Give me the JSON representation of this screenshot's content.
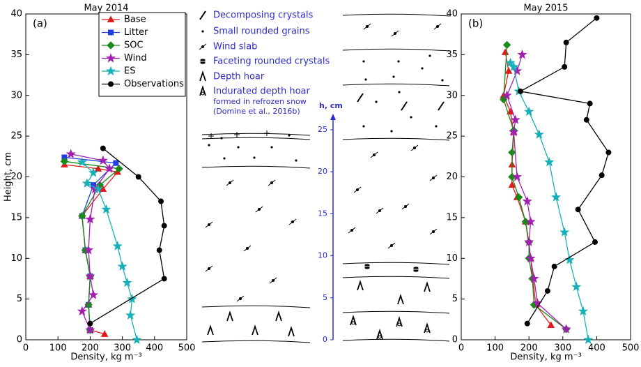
{
  "chart_data": [
    {
      "type": "line",
      "title": "May 2014",
      "panel": "(a)",
      "xlabel": "Density, kg m⁻³",
      "ylabel": "Height, cm",
      "xlim": [
        0,
        500
      ],
      "xticks": [
        0,
        100,
        200,
        300,
        400,
        500
      ],
      "ylim": [
        0,
        40
      ],
      "yticks": [
        0,
        5,
        10,
        15,
        20,
        25,
        30,
        35,
        40
      ],
      "legend": "upper right",
      "series": [
        {
          "name": "Base",
          "color": "#e31a1c",
          "marker": "triangle",
          "x": [
            245,
            200,
            195,
            200,
            185,
            175,
            240,
            285,
            225,
            120
          ],
          "values": [
            0.7,
            1.2,
            4.3,
            7.8,
            11,
            15.2,
            18.5,
            20.6,
            21,
            21.5
          ]
        },
        {
          "name": "Litter",
          "color": "#1f3fe0",
          "marker": "square",
          "x": [
            200,
            195,
            200,
            185,
            175,
            210,
            280,
            120
          ],
          "values": [
            1.2,
            4.3,
            7.8,
            11,
            15.2,
            19,
            21.7,
            22.4
          ]
        },
        {
          "name": "SOC",
          "color": "#1a8a1a",
          "marker": "diamond",
          "x": [
            200,
            195,
            200,
            185,
            175,
            230,
            290,
            120
          ],
          "values": [
            1.2,
            4.3,
            7.8,
            11,
            15.2,
            19,
            21,
            21.9
          ]
        },
        {
          "name": "Wind",
          "color": "#a020b0",
          "marker": "star",
          "x": [
            200,
            175,
            210,
            200,
            195,
            200,
            215,
            260,
            240,
            140
          ],
          "values": [
            1.2,
            3.5,
            5.5,
            7.8,
            11,
            14.8,
            18.5,
            21,
            22,
            22.8
          ]
        },
        {
          "name": "ES",
          "color": "#17b0b8",
          "marker": "star",
          "x": [
            345,
            325,
            330,
            315,
            300,
            285,
            250,
            225,
            190,
            210,
            175
          ],
          "values": [
            0,
            3,
            5,
            7,
            9,
            11.5,
            16,
            18.5,
            19.2,
            20.5,
            21.8
          ]
        },
        {
          "name": "Observations",
          "color": "#000000",
          "marker": "circle",
          "x": [
            200,
            430,
            415,
            430,
            420,
            350,
            240
          ],
          "values": [
            2,
            7.5,
            11,
            14,
            17,
            20,
            23.5
          ]
        }
      ]
    },
    {
      "type": "line",
      "title": "May 2015",
      "panel": "(b)",
      "xlabel": "Density, kg m⁻³",
      "xlim": [
        0,
        500
      ],
      "xticks": [
        0,
        100,
        200,
        300,
        400,
        500
      ],
      "ylim": [
        0,
        40
      ],
      "yticks": [
        0,
        5,
        10,
        15,
        20,
        25,
        30,
        35,
        40
      ],
      "series": [
        {
          "color": "#e31a1c",
          "marker": "triangle",
          "x": [
            265,
            220,
            205,
            190,
            165,
            150,
            150,
            155,
            145,
            125,
            140,
            130
          ],
          "values": [
            1.8,
            4.3,
            10,
            14.5,
            17.5,
            19,
            21.5,
            25.5,
            28,
            30,
            33,
            35.3
          ]
        },
        {
          "color": "#1a8a1a",
          "marker": "diamond",
          "x": [
            310,
            215,
            210,
            200,
            200,
            190,
            170,
            150,
            150,
            155,
            125,
            135
          ],
          "values": [
            1.3,
            4.3,
            7.5,
            10,
            12,
            14.5,
            17.5,
            20,
            23,
            25.7,
            29.5,
            36.2
          ]
        },
        {
          "color": "#a020b0",
          "marker": "star",
          "x": [
            310,
            225,
            215,
            205,
            200,
            205,
            195,
            165,
            155,
            160,
            135,
            165,
            180
          ],
          "values": [
            1.3,
            4.5,
            7.5,
            10,
            12,
            14.5,
            17,
            20,
            25.5,
            27,
            30,
            33,
            35
          ]
        },
        {
          "color": "#17b0b8",
          "marker": "star",
          "x": [
            375,
            360,
            340,
            320,
            305,
            280,
            260,
            230,
            200,
            170,
            155,
            145
          ],
          "values": [
            0,
            3.5,
            6.5,
            9.8,
            13.2,
            17.5,
            21.8,
            25.2,
            28,
            30.5,
            33.5,
            34
          ]
        },
        {
          "color": "#000000",
          "marker": "circle",
          "x": [
            195,
            255,
            275,
            395,
            345,
            415,
            435,
            370,
            380,
            175,
            305,
            310,
            400
          ],
          "values": [
            2,
            6,
            9,
            12,
            16,
            20.2,
            23,
            27,
            29,
            30.5,
            33.5,
            36.5,
            39.5
          ]
        }
      ]
    }
  ],
  "stratigraphy": {
    "legend": [
      "Decomposing crystals",
      "Small rounded grains",
      "Wind slab",
      "Faceting rounded crystals",
      "Depth hoar",
      "Indurated depth hoar"
    ],
    "legend_note": [
      "formed in refrozen snow",
      "(Domine et al., 2016b)"
    ],
    "h_label": "h, cm",
    "h_ticks": [
      0,
      5,
      10,
      15,
      20,
      25
    ],
    "h_lim": [
      0,
      25
    ]
  }
}
